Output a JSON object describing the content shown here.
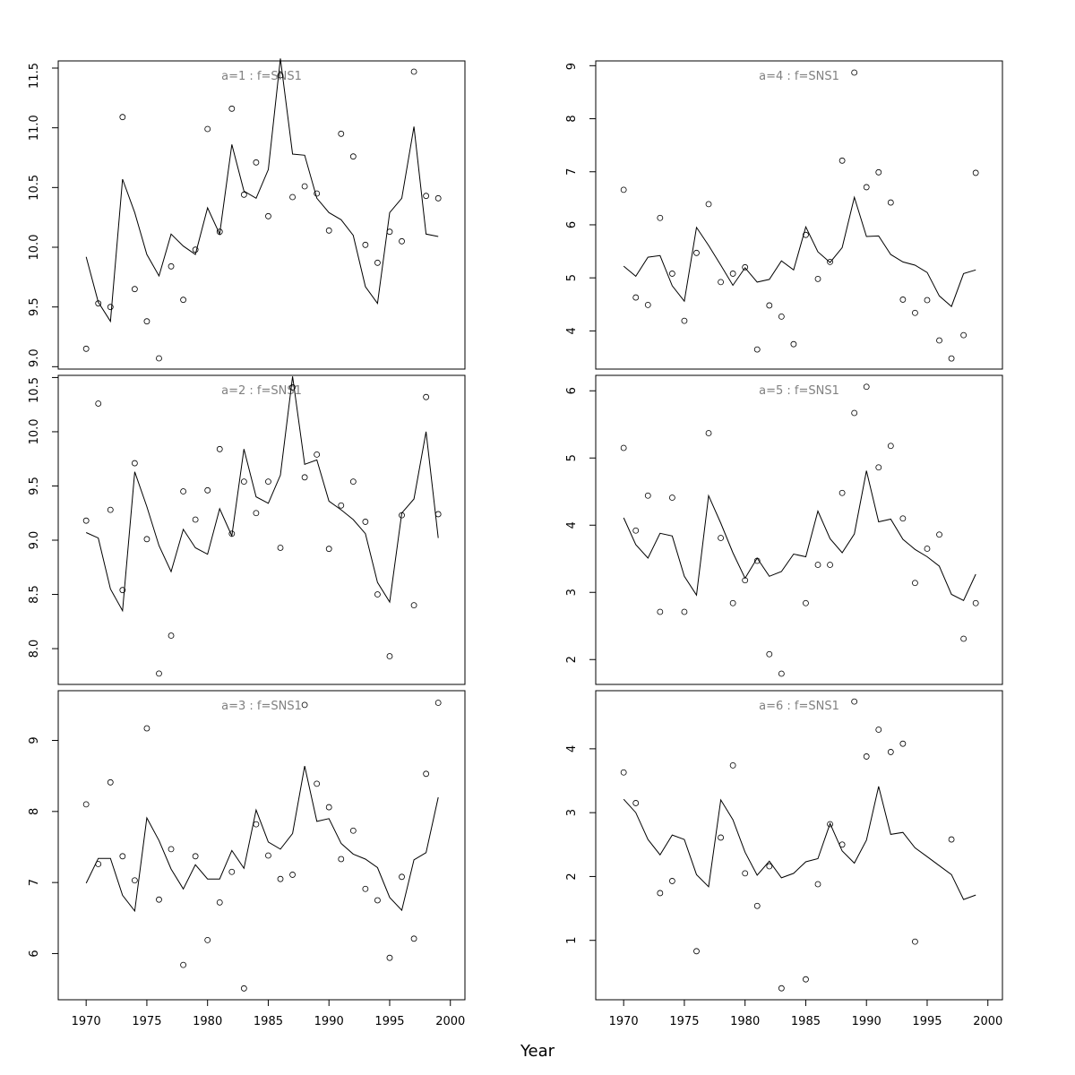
{
  "chart_data": [
    {
      "type": "line",
      "title": "a=1 : f=SNS1",
      "x": [
        1970,
        1971,
        1972,
        1973,
        1974,
        1975,
        1976,
        1977,
        1978,
        1979,
        1980,
        1981,
        1982,
        1983,
        1984,
        1985,
        1986,
        1987,
        1988,
        1989,
        1990,
        1991,
        1992,
        1993,
        1994,
        1995,
        1996,
        1997,
        1998,
        1999
      ],
      "points": [
        9.15,
        9.53,
        9.5,
        11.09,
        9.65,
        9.38,
        9.07,
        9.84,
        9.56,
        9.98,
        10.99,
        10.13,
        11.16,
        10.44,
        10.71,
        10.26,
        11.44,
        10.42,
        10.51,
        10.45,
        10.14,
        10.95,
        10.76,
        10.02,
        9.87,
        10.13,
        10.05,
        11.47,
        10.43,
        10.41
      ],
      "line": [
        9.92,
        9.54,
        9.38,
        10.57,
        10.29,
        9.94,
        9.76,
        10.11,
        10.01,
        9.94,
        10.33,
        10.11,
        10.86,
        10.47,
        10.41,
        10.65,
        11.58,
        10.78,
        10.77,
        10.41,
        10.29,
        10.23,
        10.1,
        9.67,
        9.53,
        10.29,
        10.41,
        11.01,
        10.11,
        10.09
      ],
      "ylim": [
        8.98,
        11.56
      ],
      "yticks": [
        9.0,
        9.5,
        10.0,
        10.5,
        11.0,
        11.5
      ],
      "ytick_labels": [
        "9.0",
        "9.5",
        "10.0",
        "10.5",
        "11.0",
        "11.5"
      ],
      "xlim": [
        1967.7,
        2001.2
      ],
      "show_xaxis": false
    },
    {
      "type": "line",
      "title": "a=2 : f=SNS1",
      "x": [
        1970,
        1971,
        1972,
        1973,
        1974,
        1975,
        1976,
        1977,
        1978,
        1979,
        1980,
        1981,
        1982,
        1983,
        1984,
        1985,
        1986,
        1987,
        1988,
        1989,
        1990,
        1991,
        1992,
        1993,
        1994,
        1995,
        1996,
        1997,
        1998,
        1999
      ],
      "points": [
        9.18,
        10.26,
        9.28,
        8.54,
        9.71,
        9.01,
        7.77,
        8.12,
        9.45,
        9.19,
        9.46,
        9.84,
        9.06,
        9.54,
        9.25,
        9.54,
        8.93,
        10.41,
        9.58,
        9.79,
        8.92,
        9.32,
        9.54,
        9.17,
        8.5,
        7.93,
        9.23,
        8.4,
        10.32,
        9.24
      ],
      "line": [
        9.07,
        9.02,
        8.55,
        8.35,
        9.63,
        9.31,
        8.95,
        8.71,
        9.1,
        8.93,
        8.87,
        9.29,
        9.04,
        9.84,
        9.4,
        9.34,
        9.6,
        10.51,
        9.7,
        9.74,
        9.36,
        9.28,
        9.19,
        9.06,
        8.61,
        8.43,
        9.25,
        9.38,
        10.0,
        9.02
      ],
      "ylim": [
        7.67,
        10.52
      ],
      "yticks": [
        8.0,
        8.5,
        9.0,
        9.5,
        10.0,
        10.5
      ],
      "ytick_labels": [
        "8.0",
        "8.5",
        "9.0",
        "9.5",
        "10.0",
        "10.5"
      ],
      "xlim": [
        1967.7,
        2001.2
      ],
      "show_xaxis": false
    },
    {
      "type": "line",
      "title": "a=3 : f=SNS1",
      "x": [
        1970,
        1971,
        1972,
        1973,
        1974,
        1975,
        1976,
        1977,
        1978,
        1979,
        1980,
        1981,
        1982,
        1983,
        1984,
        1985,
        1986,
        1987,
        1988,
        1989,
        1990,
        1991,
        1992,
        1993,
        1994,
        1995,
        1996,
        1997,
        1998,
        1999
      ],
      "points": [
        8.1,
        7.26,
        8.41,
        7.37,
        7.03,
        9.17,
        6.76,
        7.47,
        5.84,
        7.37,
        6.19,
        6.72,
        7.15,
        5.51,
        7.82,
        7.38,
        7.05,
        7.11,
        9.5,
        8.39,
        8.06,
        7.33,
        7.73,
        6.91,
        6.75,
        5.94,
        7.08,
        6.21,
        8.53,
        9.53
      ],
      "line": [
        6.99,
        7.34,
        7.34,
        6.82,
        6.6,
        7.91,
        7.59,
        7.19,
        6.91,
        7.25,
        7.05,
        7.05,
        7.45,
        7.2,
        8.02,
        7.57,
        7.47,
        7.69,
        8.64,
        7.86,
        7.9,
        7.55,
        7.4,
        7.33,
        7.21,
        6.79,
        6.61,
        7.32,
        7.42,
        8.2
      ],
      "ylim": [
        5.35,
        9.7
      ],
      "yticks": [
        6,
        7,
        8,
        9
      ],
      "ytick_labels": [
        "6",
        "7",
        "8",
        "9"
      ],
      "xlim": [
        1967.7,
        2001.2
      ],
      "show_xaxis": true
    },
    {
      "type": "line",
      "title": "a=4 : f=SNS1",
      "x": [
        1970,
        1971,
        1972,
        1973,
        1974,
        1975,
        1976,
        1977,
        1978,
        1979,
        1980,
        1981,
        1982,
        1983,
        1984,
        1985,
        1986,
        1987,
        1988,
        1989,
        1990,
        1991,
        1992,
        1993,
        1994,
        1995,
        1996,
        1997,
        1998,
        1999
      ],
      "points": [
        6.66,
        4.63,
        4.49,
        6.13,
        5.08,
        4.19,
        5.47,
        6.39,
        4.92,
        5.08,
        5.2,
        3.65,
        4.48,
        4.27,
        3.75,
        5.81,
        4.98,
        5.3,
        7.21,
        8.87,
        6.71,
        6.99,
        6.42,
        4.59,
        4.34,
        4.58,
        3.82,
        3.48,
        3.92,
        6.98
      ],
      "line": [
        5.22,
        5.03,
        5.39,
        5.42,
        4.85,
        4.56,
        5.95,
        5.61,
        5.24,
        4.86,
        5.19,
        4.92,
        4.97,
        5.32,
        5.15,
        5.96,
        5.49,
        5.29,
        5.57,
        6.52,
        5.78,
        5.79,
        5.44,
        5.3,
        5.24,
        5.1,
        4.66,
        4.46,
        5.08,
        5.15
      ],
      "ylim": [
        3.28,
        9.09
      ],
      "yticks": [
        4,
        5,
        6,
        7,
        8,
        9
      ],
      "ytick_labels": [
        "4",
        "5",
        "6",
        "7",
        "8",
        "9"
      ],
      "xlim": [
        1967.7,
        2001.2
      ],
      "show_xaxis": false
    },
    {
      "type": "line",
      "title": "a=5 : f=SNS1",
      "x": [
        1970,
        1971,
        1972,
        1973,
        1974,
        1975,
        1976,
        1977,
        1978,
        1979,
        1980,
        1981,
        1982,
        1983,
        1984,
        1985,
        1986,
        1987,
        1988,
        1989,
        1990,
        1991,
        1992,
        1993,
        1994,
        1995,
        1996,
        1997,
        1998,
        1999
      ],
      "points": [
        5.15,
        3.92,
        4.44,
        2.71,
        4.41,
        2.71,
        null,
        5.37,
        3.81,
        2.84,
        3.18,
        3.47,
        2.08,
        1.79,
        null,
        2.84,
        3.41,
        3.41,
        4.48,
        5.67,
        6.06,
        4.86,
        5.18,
        4.1,
        3.14,
        3.65,
        3.86,
        null,
        2.31,
        2.84
      ],
      "line": [
        4.11,
        3.71,
        3.51,
        3.88,
        3.84,
        3.24,
        2.96,
        4.44,
        4.03,
        3.59,
        3.21,
        3.51,
        3.24,
        3.31,
        3.57,
        3.53,
        4.21,
        3.8,
        3.59,
        3.87,
        4.81,
        4.05,
        4.09,
        3.79,
        3.64,
        3.53,
        3.39,
        2.97,
        2.88,
        3.27
      ],
      "ylim": [
        1.63,
        6.23
      ],
      "yticks": [
        2,
        3,
        4,
        5,
        6
      ],
      "ytick_labels": [
        "2",
        "3",
        "4",
        "5",
        "6"
      ],
      "xlim": [
        1967.7,
        2001.2
      ],
      "show_xaxis": false
    },
    {
      "type": "line",
      "title": "a=6 : f=SNS1",
      "x": [
        1970,
        1971,
        1972,
        1973,
        1974,
        1975,
        1976,
        1977,
        1978,
        1979,
        1980,
        1981,
        1982,
        1983,
        1984,
        1985,
        1986,
        1987,
        1988,
        1989,
        1990,
        1991,
        1992,
        1993,
        1994,
        1995,
        1996,
        1997,
        1998,
        1999
      ],
      "points": [
        3.63,
        3.15,
        null,
        1.74,
        1.93,
        null,
        0.83,
        null,
        2.61,
        3.74,
        2.05,
        1.54,
        2.16,
        0.25,
        null,
        0.39,
        1.88,
        2.82,
        2.5,
        4.74,
        3.88,
        4.3,
        3.95,
        4.08,
        0.98,
        null,
        null,
        2.58,
        null,
        null
      ],
      "line": [
        3.21,
        3.0,
        2.58,
        2.34,
        2.65,
        2.58,
        2.03,
        1.84,
        3.2,
        2.89,
        2.38,
        2.02,
        2.24,
        1.98,
        2.05,
        2.23,
        2.28,
        2.83,
        2.4,
        2.21,
        2.57,
        3.41,
        2.66,
        2.69,
        2.45,
        2.31,
        2.17,
        2.03,
        1.64,
        1.71
      ],
      "ylim": [
        0.07,
        4.91
      ],
      "yticks": [
        1,
        2,
        3,
        4
      ],
      "ytick_labels": [
        "1",
        "2",
        "3",
        "4"
      ],
      "xlim": [
        1967.7,
        2001.2
      ],
      "show_xaxis": true
    }
  ],
  "xticks": [
    1970,
    1975,
    1980,
    1985,
    1990,
    1995,
    2000
  ],
  "xtick_labels": [
    "1970",
    "1975",
    "1980",
    "1985",
    "1990",
    "1995",
    "2000"
  ],
  "xlabel": "Year",
  "colors": {
    "points": "#000000",
    "line": "#000000",
    "panel_title": "#808080"
  }
}
